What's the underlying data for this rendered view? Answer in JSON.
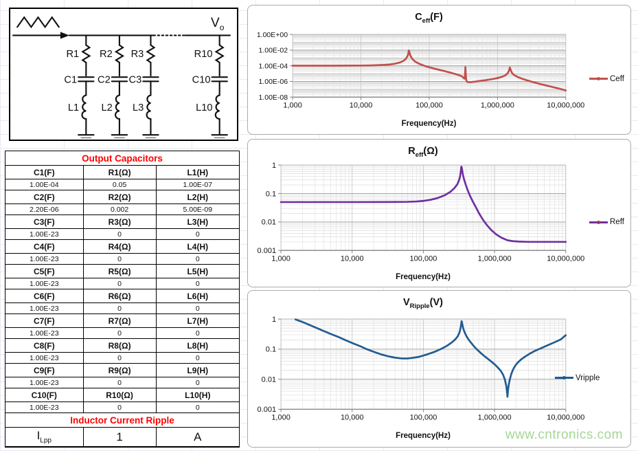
{
  "circuit": {
    "vo_main": "V",
    "vo_sub": "o",
    "branches": [
      {
        "r": "R1",
        "c": "C1",
        "l": "L1"
      },
      {
        "r": "R2",
        "c": "C2",
        "l": "L2"
      },
      {
        "r": "R3",
        "c": "C3",
        "l": "L3"
      },
      {
        "r": "R10",
        "c": "C10",
        "l": "L10"
      }
    ]
  },
  "table": {
    "title": "Output Capacitors",
    "rows": [
      {
        "c_label": "C1(F)",
        "r_label": "R1(Ω)",
        "l_label": "L1(H)",
        "c": "1.00E-04",
        "r": "0.05",
        "l": "1.00E-07"
      },
      {
        "c_label": "C2(F)",
        "r_label": "R2(Ω)",
        "l_label": "L2(H)",
        "c": "2.20E-06",
        "r": "0.002",
        "l": "5.00E-09"
      },
      {
        "c_label": "C3(F)",
        "r_label": "R3(Ω)",
        "l_label": "L3(H)",
        "c": "1.00E-23",
        "r": "0",
        "l": "0"
      },
      {
        "c_label": "C4(F)",
        "r_label": "R4(Ω)",
        "l_label": "L4(H)",
        "c": "1.00E-23",
        "r": "0",
        "l": "0"
      },
      {
        "c_label": "C5(F)",
        "r_label": "R5(Ω)",
        "l_label": "L5(H)",
        "c": "1.00E-23",
        "r": "0",
        "l": "0"
      },
      {
        "c_label": "C6(F)",
        "r_label": "R6(Ω)",
        "l_label": "L6(H)",
        "c": "1.00E-23",
        "r": "0",
        "l": "0"
      },
      {
        "c_label": "C7(F)",
        "r_label": "R7(Ω)",
        "l_label": "L7(H)",
        "c": "1.00E-23",
        "r": "0",
        "l": "0"
      },
      {
        "c_label": "C8(F)",
        "r_label": "R8(Ω)",
        "l_label": "L8(H)",
        "c": "1.00E-23",
        "r": "0",
        "l": "0"
      },
      {
        "c_label": "C9(F)",
        "r_label": "R9(Ω)",
        "l_label": "L9(H)",
        "c": "1.00E-23",
        "r": "0",
        "l": "0"
      },
      {
        "c_label": "C10(F)",
        "r_label": "R10(Ω)",
        "l_label": "L10(H)",
        "c": "1.00E-23",
        "r": "0",
        "l": "0"
      }
    ],
    "ripple_title": "Inductor Current Ripple",
    "ripple_row": {
      "sym_main": "I",
      "sym_sub": "Lpp",
      "value": "1",
      "unit": "A"
    }
  },
  "charts": [
    {
      "title_main": "C",
      "title_sub": "eff",
      "title_suffix": "(F)",
      "legend": "Ceff",
      "xlabel": "Frequency(Hz)",
      "y_ticks": [
        "1.00E+00",
        "1.00E-02",
        "1.00E-04",
        "1.00E-06",
        "1.00E-08"
      ],
      "x_ticks": [
        "1,000",
        "10,000",
        "100,000",
        "1,000,000",
        "10,000,000"
      ]
    },
    {
      "title_main": "R",
      "title_sub": "eff",
      "title_suffix": "(Ω)",
      "legend": "Reff",
      "xlabel": "Frequency(Hz)",
      "y_ticks": [
        "1",
        "0.1",
        "0.01",
        "0.001"
      ],
      "x_ticks": [
        "1,000",
        "10,000",
        "100,000",
        "1,000,000",
        "10,000,000"
      ]
    },
    {
      "title_main": "V",
      "title_sub": "Ripple",
      "title_suffix": "(V)",
      "legend": "Vripple",
      "xlabel": "Frequency(Hz)",
      "y_ticks": [
        "1",
        "0.1",
        "0.01",
        "0.001"
      ],
      "x_ticks": [
        "1,000",
        "10,000",
        "100,000",
        "1,000,000",
        "10,000,000"
      ]
    }
  ],
  "chart_data": [
    {
      "type": "line",
      "title": "Ceff(F)",
      "xlabel": "Frequency(Hz)",
      "legend": "Ceff",
      "color": "#C0504D",
      "xlim": [
        1000,
        10000000
      ],
      "ylim": [
        1e-08,
        1
      ],
      "log_x": true,
      "log_y": true,
      "points": [
        [
          1000,
          0.000103
        ],
        [
          2000,
          0.000103
        ],
        [
          4000,
          0.000104
        ],
        [
          7000,
          0.000105
        ],
        [
          10000,
          0.000107
        ],
        [
          14000,
          0.000112
        ],
        [
          18000,
          0.00012
        ],
        [
          22000,
          0.00013
        ],
        [
          26000,
          0.000145
        ],
        [
          30000,
          0.00017
        ],
        [
          34000,
          0.00021
        ],
        [
          38000,
          0.00028
        ],
        [
          42000,
          0.00042
        ],
        [
          45000,
          0.0007
        ],
        [
          47000,
          0.0012
        ],
        [
          49000,
          0.0025
        ],
        [
          50300,
          0.009
        ],
        [
          51500,
          0.005
        ],
        [
          53000,
          0.002
        ],
        [
          55000,
          0.0011
        ],
        [
          58000,
          0.0006
        ],
        [
          62000,
          0.00035
        ],
        [
          68000,
          0.00022
        ],
        [
          75000,
          0.00015
        ],
        [
          85000,
          0.0001
        ],
        [
          100000,
          6.5e-05
        ],
        [
          120000,
          4.2e-05
        ],
        [
          140000,
          3e-05
        ],
        [
          170000,
          2e-05
        ],
        [
          200000,
          1.4e-05
        ],
        [
          240000,
          9e-06
        ],
        [
          270000,
          6.5e-06
        ],
        [
          300000,
          4.5e-06
        ],
        [
          315000,
          3.2e-06
        ],
        [
          328000,
          2.2e-06
        ],
        [
          333000,
          3e-06
        ],
        [
          337000,
          2e-05
        ],
        [
          339000,
          7e-05
        ],
        [
          341000,
          2.5e-05
        ],
        [
          345000,
          4e-06
        ],
        [
          350000,
          1.3e-06
        ],
        [
          360000,
          9e-07
        ],
        [
          380000,
          8e-07
        ],
        [
          420000,
          8.5e-07
        ],
        [
          470000,
          9.5e-07
        ],
        [
          550000,
          1.15e-06
        ],
        [
          650000,
          1.4e-06
        ],
        [
          750000,
          1.7e-06
        ],
        [
          900000,
          2.2e-06
        ],
        [
          1050000,
          3e-06
        ],
        [
          1150000,
          3.8e-06
        ],
        [
          1250000,
          5e-06
        ],
        [
          1350000,
          7.5e-06
        ],
        [
          1420000,
          1.2e-05
        ],
        [
          1480000,
          2.5e-05
        ],
        [
          1517000,
          6e-05
        ],
        [
          1560000,
          3e-05
        ],
        [
          1620000,
          1.4e-05
        ],
        [
          1700000,
          8e-06
        ],
        [
          1850000,
          5e-06
        ],
        [
          2000000,
          3.5e-06
        ],
        [
          2300000,
          2.2e-06
        ],
        [
          2700000,
          1.4e-06
        ],
        [
          3200000,
          9e-07
        ],
        [
          3800000,
          6e-07
        ],
        [
          4500000,
          4e-07
        ],
        [
          5500000,
          2.7e-07
        ],
        [
          6500000,
          1.9e-07
        ],
        [
          7500000,
          1.4e-07
        ],
        [
          8500000,
          1.05e-07
        ],
        [
          10000000,
          7e-08
        ]
      ]
    },
    {
      "type": "line",
      "title": "Reff(Ω)",
      "xlabel": "Frequency(Hz)",
      "legend": "Reff",
      "color": "#7030A0",
      "xlim": [
        1000,
        10000000
      ],
      "ylim": [
        0.001,
        1
      ],
      "log_x": true,
      "log_y": true,
      "points": [
        [
          1000,
          0.05
        ],
        [
          3000,
          0.05
        ],
        [
          10000,
          0.05
        ],
        [
          20000,
          0.0502
        ],
        [
          40000,
          0.0505
        ],
        [
          60000,
          0.051
        ],
        [
          80000,
          0.0525
        ],
        [
          100000,
          0.055
        ],
        [
          130000,
          0.061
        ],
        [
          160000,
          0.07
        ],
        [
          200000,
          0.087
        ],
        [
          240000,
          0.115
        ],
        [
          270000,
          0.15
        ],
        [
          300000,
          0.21
        ],
        [
          315000,
          0.28
        ],
        [
          325000,
          0.36
        ],
        [
          332000,
          0.48
        ],
        [
          337000,
          0.65
        ],
        [
          340000,
          0.85
        ],
        [
          343000,
          0.88
        ],
        [
          347000,
          0.8
        ],
        [
          352000,
          0.62
        ],
        [
          360000,
          0.45
        ],
        [
          375000,
          0.3
        ],
        [
          395000,
          0.2
        ],
        [
          420000,
          0.13
        ],
        [
          450000,
          0.085
        ],
        [
          490000,
          0.055
        ],
        [
          540000,
          0.035
        ],
        [
          600000,
          0.021
        ],
        [
          680000,
          0.0125
        ],
        [
          780000,
          0.0078
        ],
        [
          900000,
          0.0052
        ],
        [
          1050000,
          0.0037
        ],
        [
          1250000,
          0.0028
        ],
        [
          1500000,
          0.0023
        ],
        [
          1800000,
          0.00212
        ],
        [
          2200000,
          0.00205
        ],
        [
          3000000,
          0.002
        ],
        [
          4000000,
          0.002
        ],
        [
          6000000,
          0.002
        ],
        [
          10000000,
          0.002
        ]
      ]
    },
    {
      "type": "line",
      "title": "VRipple(V)",
      "xlabel": "Frequency(Hz)",
      "legend": "Vripple",
      "color": "#235B92",
      "xlim": [
        1000,
        10000000
      ],
      "ylim": [
        0.001,
        1
      ],
      "log_x": true,
      "log_y": true,
      "points": [
        [
          1600,
          0.97
        ],
        [
          2000,
          0.8
        ],
        [
          2500,
          0.64
        ],
        [
          3200,
          0.5
        ],
        [
          4000,
          0.4
        ],
        [
          5000,
          0.32
        ],
        [
          6500,
          0.25
        ],
        [
          8000,
          0.2
        ],
        [
          10000,
          0.16
        ],
        [
          13000,
          0.125
        ],
        [
          16000,
          0.1
        ],
        [
          20000,
          0.082
        ],
        [
          25000,
          0.068
        ],
        [
          32000,
          0.058
        ],
        [
          40000,
          0.052
        ],
        [
          50000,
          0.049
        ],
        [
          60000,
          0.049
        ],
        [
          70000,
          0.051
        ],
        [
          85000,
          0.055
        ],
        [
          100000,
          0.061
        ],
        [
          120000,
          0.07
        ],
        [
          145000,
          0.082
        ],
        [
          175000,
          0.1
        ],
        [
          210000,
          0.125
        ],
        [
          250000,
          0.165
        ],
        [
          280000,
          0.21
        ],
        [
          305000,
          0.27
        ],
        [
          322000,
          0.36
        ],
        [
          333000,
          0.5
        ],
        [
          340000,
          0.68
        ],
        [
          344000,
          0.85
        ],
        [
          348000,
          0.8
        ],
        [
          355000,
          0.62
        ],
        [
          365000,
          0.47
        ],
        [
          380000,
          0.36
        ],
        [
          400000,
          0.28
        ],
        [
          430000,
          0.21
        ],
        [
          470000,
          0.16
        ],
        [
          520000,
          0.12
        ],
        [
          580000,
          0.092
        ],
        [
          650000,
          0.072
        ],
        [
          730000,
          0.057
        ],
        [
          820000,
          0.046
        ],
        [
          920000,
          0.037
        ],
        [
          1020000,
          0.03
        ],
        [
          1120000,
          0.024
        ],
        [
          1220000,
          0.019
        ],
        [
          1320000,
          0.014
        ],
        [
          1400000,
          0.0095
        ],
        [
          1460000,
          0.006
        ],
        [
          1500000,
          0.0036
        ],
        [
          1517000,
          0.0026
        ],
        [
          1540000,
          0.004
        ],
        [
          1580000,
          0.0065
        ],
        [
          1640000,
          0.01
        ],
        [
          1720000,
          0.015
        ],
        [
          1820000,
          0.021
        ],
        [
          1950000,
          0.028
        ],
        [
          2100000,
          0.035
        ],
        [
          2350000,
          0.045
        ],
        [
          2700000,
          0.057
        ],
        [
          3100000,
          0.07
        ],
        [
          3600000,
          0.085
        ],
        [
          4200000,
          0.1
        ],
        [
          5000000,
          0.12
        ],
        [
          6000000,
          0.145
        ],
        [
          7200000,
          0.175
        ],
        [
          8500000,
          0.21
        ],
        [
          10000000,
          0.29
        ]
      ]
    }
  ],
  "watermark": "www.cntronics.com",
  "colors": {
    "ceff": "#C0504D",
    "reff": "#7030A0",
    "vripple": "#235B92",
    "table_header_bg": "#f6c190",
    "red_title": "#ff0000"
  }
}
